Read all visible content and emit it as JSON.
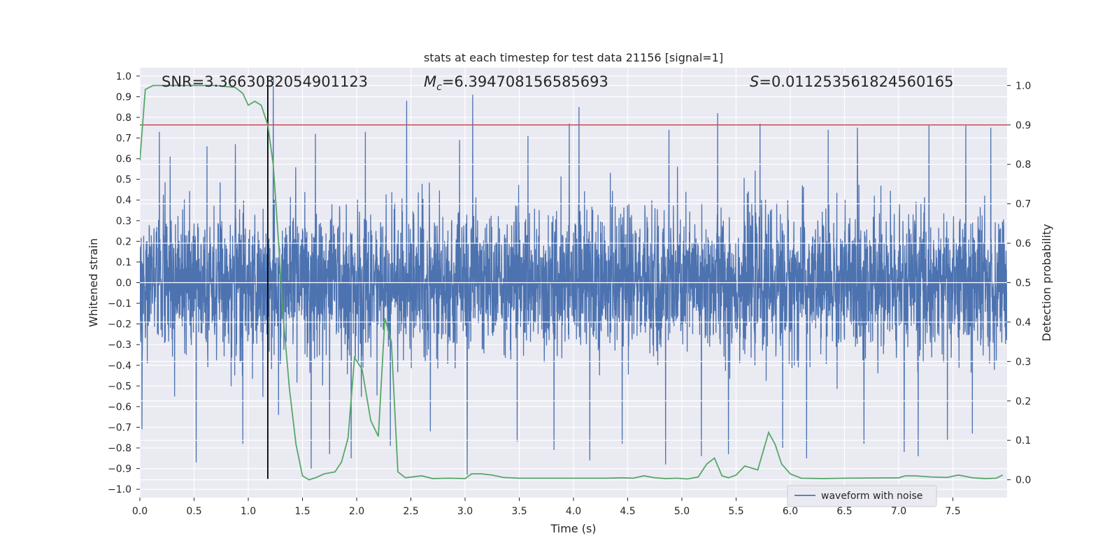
{
  "chart_data": {
    "type": "line",
    "title": "stats at each timestep for test data 21156 [signal=1]",
    "xlabel": "Time (s)",
    "ylabel": "Whitened strain",
    "y2label": "Detection probability",
    "xlim": [
      0.0,
      8.0
    ],
    "ylim": [
      -1.04,
      1.04
    ],
    "y2lim": [
      -0.045,
      1.045
    ],
    "xticks": [
      "0.0",
      "0.5",
      "1.0",
      "1.5",
      "2.0",
      "2.5",
      "3.0",
      "3.5",
      "4.0",
      "4.5",
      "5.0",
      "5.5",
      "6.0",
      "6.5",
      "7.0",
      "7.5"
    ],
    "yticks": [
      "1.0",
      "0.9",
      "0.8",
      "0.7",
      "0.6",
      "0.5",
      "0.4",
      "0.3",
      "0.2",
      "0.1",
      "0.0",
      "-0.1",
      "-0.2",
      "-0.3",
      "-0.4",
      "-0.5",
      "-0.6",
      "-0.7",
      "-0.8",
      "-0.9",
      "-1.0"
    ],
    "y2ticks": [
      "1.0",
      "0.9",
      "0.8",
      "0.7",
      "0.6",
      "0.5",
      "0.4",
      "0.3",
      "0.2",
      "0.1",
      "0.0"
    ],
    "annotations": {
      "snr": "SNR=3.3663032054901123",
      "mc_symbol": "M",
      "mc_sub": "c",
      "mc_value": "=6.394708156585693",
      "s_symbol": "S",
      "s_value": "=0.011253561824560165"
    },
    "threshold": 0.9,
    "marker_time": 1.18,
    "grid": true,
    "legend_position": "lower-right",
    "series": [
      {
        "name": "waveform with noise",
        "axis": "left",
        "color": "#4c72b0",
        "kind": "noise",
        "amplitude_band": [
          -0.4,
          0.4
        ],
        "max_peaks": [
          [
            0.02,
            0.66
          ],
          [
            0.18,
            0.73
          ],
          [
            0.28,
            0.61
          ],
          [
            0.52,
            0.63
          ],
          [
            0.62,
            0.66
          ],
          [
            0.88,
            0.67
          ],
          [
            1.23,
            1.0
          ],
          [
            1.62,
            0.72
          ],
          [
            1.95,
            0.87
          ],
          [
            2.08,
            0.73
          ],
          [
            2.46,
            0.88
          ],
          [
            2.95,
            0.69
          ],
          [
            3.07,
            0.91
          ],
          [
            3.58,
            0.71
          ],
          [
            3.96,
            0.77
          ],
          [
            4.05,
            0.85
          ],
          [
            4.45,
            0.78
          ],
          [
            4.88,
            0.74
          ],
          [
            5.33,
            0.82
          ],
          [
            5.72,
            0.77
          ],
          [
            6.35,
            0.74
          ],
          [
            6.62,
            0.75
          ],
          [
            7.05,
            0.78
          ],
          [
            7.28,
            0.76
          ],
          [
            7.62,
            0.76
          ],
          [
            7.85,
            0.75
          ]
        ],
        "min_peaks": [
          [
            0.02,
            -0.71
          ],
          [
            0.52,
            -0.87
          ],
          [
            0.95,
            -0.78
          ],
          [
            1.28,
            -0.64
          ],
          [
            1.58,
            -0.9
          ],
          [
            1.75,
            -0.83
          ],
          [
            1.95,
            -0.85
          ],
          [
            2.31,
            -0.79
          ],
          [
            2.68,
            -0.72
          ],
          [
            3.02,
            -0.93
          ],
          [
            3.48,
            -0.77
          ],
          [
            3.82,
            -0.81
          ],
          [
            4.15,
            -0.86
          ],
          [
            4.45,
            -0.78
          ],
          [
            4.85,
            -0.88
          ],
          [
            5.18,
            -0.84
          ],
          [
            5.43,
            -0.83
          ],
          [
            5.93,
            -0.8
          ],
          [
            6.15,
            -0.85
          ],
          [
            6.68,
            -0.78
          ],
          [
            7.05,
            -0.82
          ],
          [
            7.18,
            -0.84
          ],
          [
            7.45,
            -0.76
          ],
          [
            7.68,
            -0.73
          ]
        ]
      },
      {
        "name": "",
        "axis": "right",
        "color": "#55a868",
        "x": [
          0.0,
          0.05,
          0.12,
          0.3,
          0.5,
          0.7,
          0.88,
          0.95,
          1.0,
          1.06,
          1.12,
          1.18,
          1.23,
          1.28,
          1.32,
          1.38,
          1.44,
          1.5,
          1.56,
          1.62,
          1.7,
          1.8,
          1.86,
          1.92,
          1.98,
          2.05,
          2.13,
          2.2,
          2.26,
          2.32,
          2.38,
          2.45,
          2.6,
          2.7,
          2.85,
          3.0,
          3.06,
          3.15,
          3.25,
          3.35,
          3.5,
          4.0,
          4.3,
          4.45,
          4.55,
          4.65,
          4.75,
          4.85,
          4.95,
          5.05,
          5.15,
          5.23,
          5.3,
          5.37,
          5.43,
          5.5,
          5.58,
          5.7,
          5.8,
          5.86,
          5.92,
          6.0,
          6.1,
          6.3,
          6.5,
          7.0,
          7.06,
          7.15,
          7.3,
          7.45,
          7.55,
          7.68,
          7.8,
          7.9,
          7.96
        ],
        "y": [
          0.81,
          0.99,
          1.0,
          1.0,
          1.0,
          1.0,
          0.995,
          0.98,
          0.95,
          0.96,
          0.95,
          0.9,
          0.8,
          0.6,
          0.42,
          0.23,
          0.09,
          0.01,
          0.0,
          0.005,
          0.015,
          0.02,
          0.045,
          0.105,
          0.31,
          0.28,
          0.15,
          0.11,
          0.41,
          0.35,
          0.02,
          0.005,
          0.01,
          0.003,
          0.004,
          0.003,
          0.015,
          0.015,
          0.012,
          0.006,
          0.004,
          0.004,
          0.004,
          0.005,
          0.004,
          0.01,
          0.005,
          0.003,
          0.004,
          0.002,
          0.007,
          0.04,
          0.055,
          0.01,
          0.005,
          0.012,
          0.035,
          0.025,
          0.12,
          0.09,
          0.04,
          0.015,
          0.004,
          0.003,
          0.004,
          0.005,
          0.01,
          0.01,
          0.007,
          0.006,
          0.012,
          0.005,
          0.003,
          0.004,
          0.012
        ]
      }
    ]
  }
}
